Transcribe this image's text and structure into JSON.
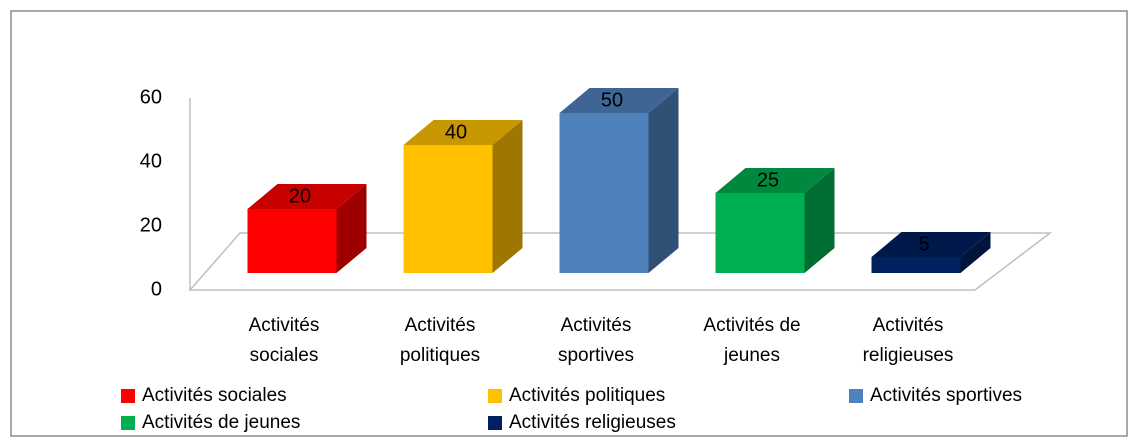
{
  "chart_data": {
    "type": "bar3d",
    "categories": [
      "Activités sociales",
      "Activités politiques",
      "Activités sportives",
      "Activités de jeunes",
      "Activités religieuses"
    ],
    "values": [
      20,
      40,
      50,
      25,
      5
    ],
    "colors": [
      "#ff0000",
      "#ffc000",
      "#4f81bd",
      "#00b050",
      "#002060"
    ],
    "ylim": [
      0,
      60
    ],
    "yticks": [
      0,
      20,
      40,
      60
    ],
    "legend": "bottom"
  }
}
